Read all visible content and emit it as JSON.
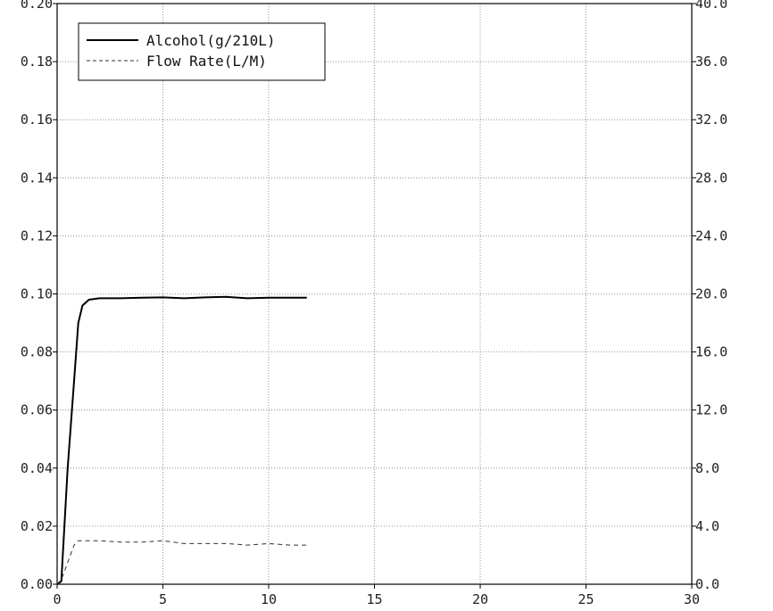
{
  "chart_data": {
    "type": "line",
    "title": "",
    "xlabel": "",
    "ylabel_left": "",
    "ylabel_right": "",
    "xlim": [
      0,
      30
    ],
    "ylim_left": [
      0,
      0.2
    ],
    "ylim_right": [
      0,
      40
    ],
    "grid": true,
    "legend_position": "top-left",
    "x_ticks": [
      "0",
      "5",
      "10",
      "15",
      "20",
      "25",
      "30"
    ],
    "y_left_ticks": [
      "0.00",
      "0.02",
      "0.04",
      "0.06",
      "0.08",
      "0.10",
      "0.12",
      "0.14",
      "0.16",
      "0.18",
      "0.20"
    ],
    "y_right_ticks": [
      "0.0",
      "4.0",
      "8.0",
      "12.0",
      "16.0",
      "20.0",
      "24.0",
      "28.0",
      "32.0",
      "36.0",
      "40.0"
    ],
    "series": [
      {
        "name": "Alcohol(g/210L)",
        "axis": "left",
        "line_style": "solid",
        "color": "#000000",
        "x": [
          0,
          0.2,
          0.5,
          0.8,
          1.0,
          1.2,
          1.5,
          2.0,
          3.0,
          4.0,
          5.0,
          6.0,
          7.0,
          8.0,
          9.0,
          10.0,
          11.0,
          11.8
        ],
        "y": [
          0.0,
          0.001,
          0.04,
          0.07,
          0.09,
          0.096,
          0.098,
          0.0985,
          0.0985,
          0.0987,
          0.0988,
          0.0985,
          0.0988,
          0.099,
          0.0985,
          0.0987,
          0.0987,
          0.0987
        ]
      },
      {
        "name": "Flow Rate(L/M)",
        "axis": "right",
        "line_style": "dashed",
        "color": "#333333",
        "x": [
          0,
          0.2,
          0.5,
          0.8,
          1.0,
          1.5,
          2.0,
          3.0,
          4.0,
          5.0,
          6.0,
          7.0,
          8.0,
          9.0,
          10.0,
          11.0,
          11.8
        ],
        "y": [
          0.0,
          0.3,
          1.5,
          2.7,
          3.0,
          3.0,
          3.0,
          2.9,
          2.9,
          3.0,
          2.8,
          2.8,
          2.8,
          2.7,
          2.8,
          2.7,
          2.7
        ]
      }
    ]
  }
}
